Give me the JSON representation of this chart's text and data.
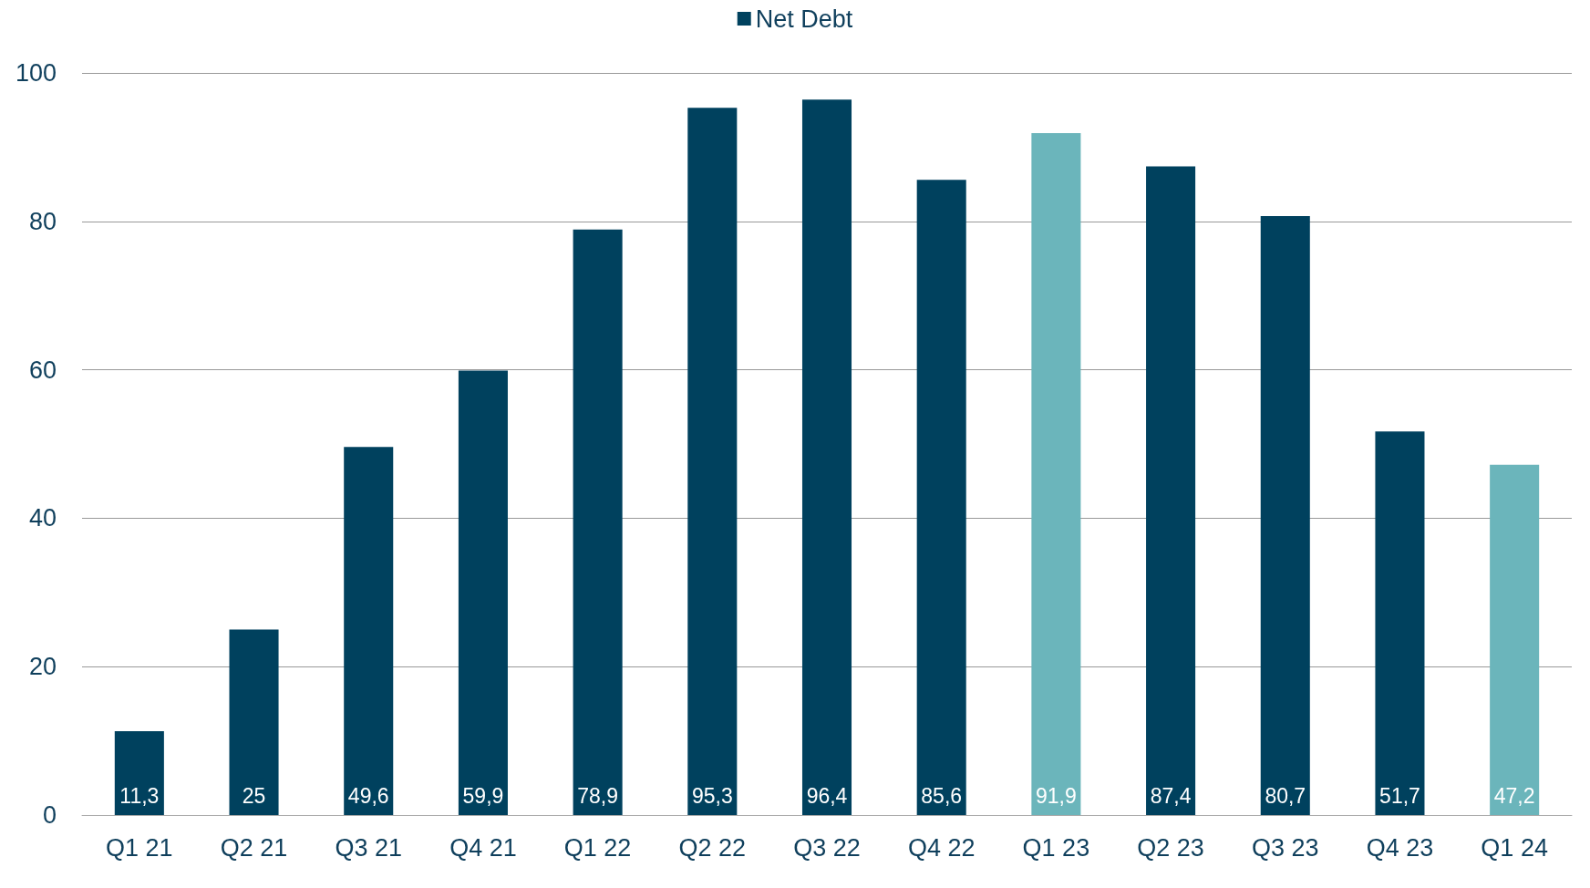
{
  "chart_data": {
    "type": "bar",
    "categories": [
      "Q1 21",
      "Q2 21",
      "Q3 21",
      "Q4 21",
      "Q1 22",
      "Q2 22",
      "Q3 22",
      "Q4 22",
      "Q1 23",
      "Q2 23",
      "Q3 23",
      "Q4 23",
      "Q1 24"
    ],
    "series": [
      {
        "name": "Net Debt",
        "color": "#00415e",
        "colors": [
          "#00415e",
          "#00415e",
          "#00415e",
          "#00415e",
          "#00415e",
          "#00415e",
          "#00415e",
          "#00415e",
          "#6bb5bb",
          "#00415e",
          "#00415e",
          "#00415e",
          "#6bb5bb"
        ],
        "values": [
          11.3,
          25,
          49.6,
          59.9,
          78.9,
          95.3,
          96.4,
          85.6,
          91.9,
          87.4,
          80.7,
          51.7,
          47.2
        ],
        "value_labels": [
          "11,3",
          "25",
          "49,6",
          "59,9",
          "78,9",
          "95,3",
          "96,4",
          "85,6",
          "91,9",
          "87,4",
          "80,7",
          "51,7",
          "47,2"
        ]
      }
    ],
    "ylim": [
      0,
      100
    ],
    "yticks": [
      0,
      20,
      40,
      60,
      80,
      100
    ],
    "grid": "y",
    "legend": "top"
  }
}
